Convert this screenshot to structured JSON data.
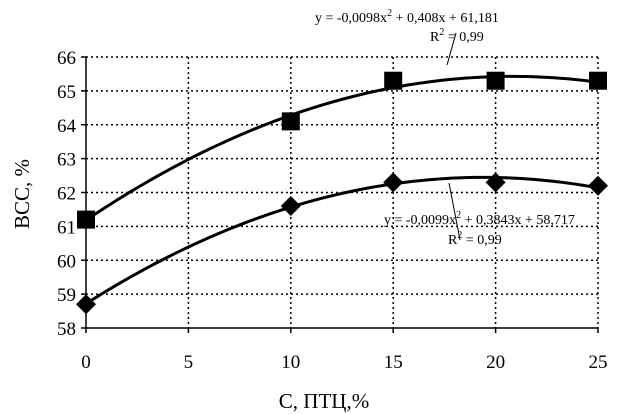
{
  "chart_data": {
    "type": "scatter",
    "xlabel": "С, ПТЦ,%",
    "ylabel": "ВСС, %",
    "xlim": [
      0,
      25
    ],
    "ylim": [
      58,
      66
    ],
    "x_ticks": [
      0,
      5,
      10,
      15,
      20,
      25
    ],
    "y_ticks": [
      58,
      59,
      60,
      61,
      62,
      63,
      64,
      65,
      66
    ],
    "grid": true,
    "series": [
      {
        "marker": "square",
        "x": [
          0,
          10,
          15,
          20,
          25
        ],
        "y": [
          61.2,
          64.1,
          65.3,
          65.3,
          65.3
        ],
        "trendline": {
          "type": "polynomial",
          "coefficients": {
            "a": -0.0098,
            "b": 0.408,
            "c": 61.181
          },
          "equation_prefix": "y = -0,0098x",
          "equation_suffix": " + 0,408x + 61,181",
          "r2_prefix": "R",
          "r2_suffix": " = 0,99"
        }
      },
      {
        "marker": "diamond",
        "x": [
          0,
          10,
          15,
          20,
          25
        ],
        "y": [
          58.7,
          61.6,
          62.3,
          62.3,
          62.2
        ],
        "trendline": {
          "type": "polynomial",
          "coefficients": {
            "a": -0.0099,
            "b": 0.3843,
            "c": 58.717
          },
          "equation_prefix": "y = -0,0099x",
          "equation_suffix": " + 0,3843x + 58,717",
          "r2_prefix": "R",
          "r2_suffix": " = 0,99"
        }
      }
    ]
  }
}
